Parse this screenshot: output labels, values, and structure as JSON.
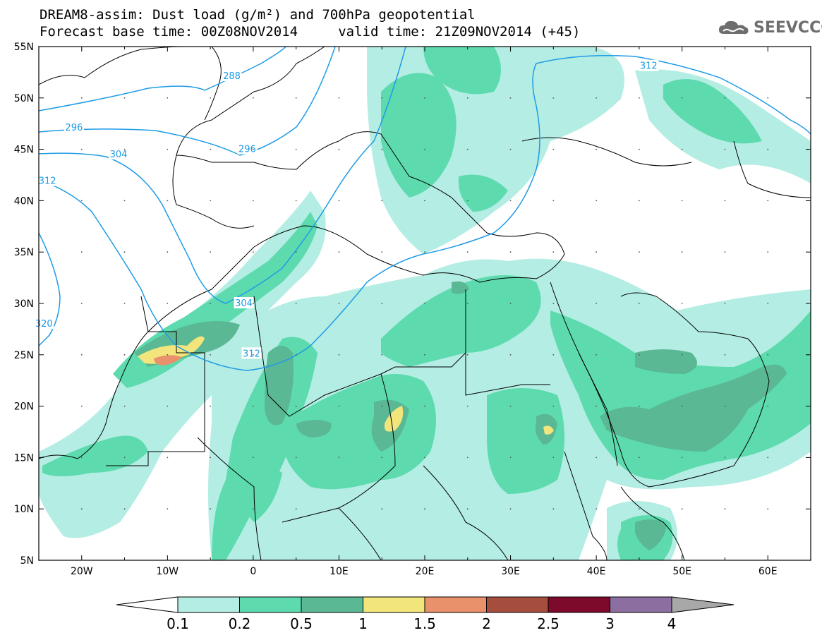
{
  "title": {
    "line1": "DREAM8-assim: Dust load (g/m²) and 700hPa geopotential",
    "line2": "Forecast base time: 00Z08NOV2014     valid time: 21Z09NOV2014 (+45)"
  },
  "logo": {
    "text": "SEEVCCC",
    "icon": "cloud-icon"
  },
  "map": {
    "lon_range": [
      -25,
      65
    ],
    "lat_range": [
      5,
      55
    ],
    "lat_labels": [
      "5N",
      "10N",
      "15N",
      "20N",
      "25N",
      "30N",
      "35N",
      "40N",
      "45N",
      "50N",
      "55N"
    ],
    "lat_values": [
      5,
      10,
      15,
      20,
      25,
      30,
      35,
      40,
      45,
      50,
      55
    ],
    "lon_labels": [
      "20W",
      "10W",
      "0",
      "10E",
      "20E",
      "30E",
      "40E",
      "50E",
      "60E"
    ],
    "lon_values": [
      -20,
      -10,
      0,
      10,
      20,
      30,
      40,
      50,
      60
    ],
    "contour_labels": [
      {
        "text": "288",
        "lon": -2.5,
        "lat": 52.1
      },
      {
        "text": "296",
        "lon": -20.9,
        "lat": 47.1
      },
      {
        "text": "296",
        "lon": -0.7,
        "lat": 45.0
      },
      {
        "text": "304",
        "lon": -15.7,
        "lat": 44.5
      },
      {
        "text": "312",
        "lon": -24.0,
        "lat": 41.9
      },
      {
        "text": "312",
        "lon": 46.1,
        "lat": 53.1
      },
      {
        "text": "304",
        "lon": -1.1,
        "lat": 30.0
      },
      {
        "text": "312",
        "lon": -0.2,
        "lat": 25.1
      },
      {
        "text": "320",
        "lon": -24.4,
        "lat": 28.0
      }
    ],
    "contour_color": "#1e9be6"
  },
  "colorbar": {
    "labels": [
      "0.1",
      "0.2",
      "0.5",
      "1",
      "1.5",
      "2",
      "2.5",
      "3",
      "4"
    ],
    "colors": [
      "#b4ede3",
      "#5ddbae",
      "#5bb894",
      "#f2e57c",
      "#e8916a",
      "#a54e3e",
      "#7d0a2b",
      "#8c6fa0"
    ],
    "low_color": "#ffffff",
    "high_color": "#a8a8a8"
  }
}
